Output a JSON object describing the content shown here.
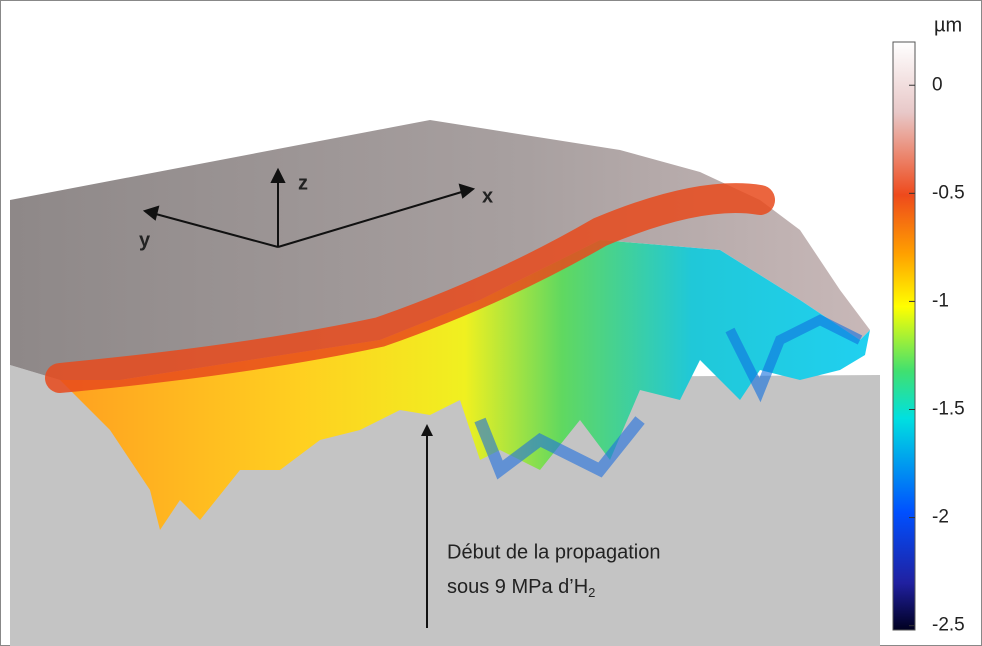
{
  "axes_labels": {
    "x": "x",
    "y": "y",
    "z": "z"
  },
  "colorbar": {
    "unit": "µm",
    "lim": [
      -2.52,
      0.2
    ],
    "ticks": [
      0,
      -0.5,
      -1,
      -1.5,
      -2,
      -2.5
    ]
  },
  "annotation": {
    "line1": "Début de la propagation",
    "line2": {
      "text": "sous 9 MPa d’H",
      "subscript": "2"
    }
  }
}
